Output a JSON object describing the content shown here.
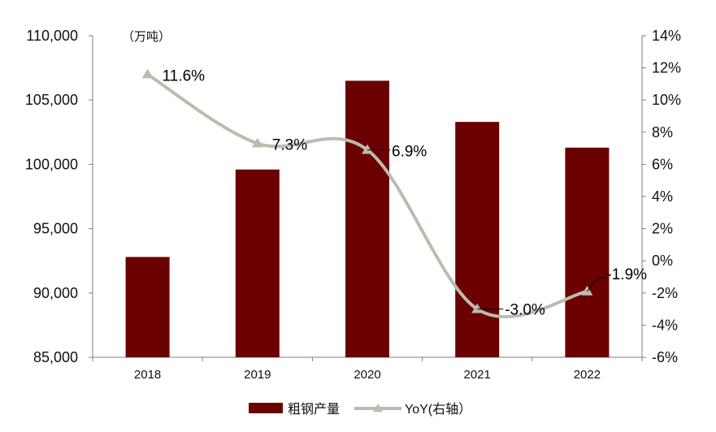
{
  "chart_data": {
    "type": "bar",
    "unit_label": "（万吨）",
    "categories": [
      "2018",
      "2019",
      "2020",
      "2021",
      "2022"
    ],
    "series": [
      {
        "name": "粗钢产量",
        "type": "bar",
        "axis": "left",
        "color": "#6B0000",
        "values": [
          92800,
          99600,
          106500,
          103300,
          101300
        ]
      },
      {
        "name": "YoY(右轴）",
        "type": "line",
        "axis": "right",
        "color": "#BDBBAE",
        "marker": "triangle",
        "smooth": true,
        "values": [
          11.6,
          7.3,
          6.9,
          -3.0,
          -1.9
        ],
        "labels": [
          "11.6%",
          "7.3%",
          "6.9%",
          "-3.0%",
          "-1.9%"
        ]
      }
    ],
    "y_left": {
      "ylim": [
        85000,
        110000
      ],
      "ticks": [
        85000,
        90000,
        95000,
        100000,
        105000,
        110000
      ],
      "tick_labels": [
        "85,000",
        "90,000",
        "95,000",
        "100,000",
        "105,000",
        "110,000"
      ]
    },
    "y_right": {
      "ylim": [
        -6,
        14
      ],
      "ticks": [
        -6,
        -4,
        -2,
        0,
        2,
        4,
        6,
        8,
        10,
        12,
        14
      ],
      "tick_labels": [
        "-6%",
        "-4%",
        "-2%",
        "0%",
        "2%",
        "4%",
        "6%",
        "8%",
        "10%",
        "12%",
        "14%"
      ]
    },
    "legend_position": "bottom-center",
    "grid": false
  }
}
